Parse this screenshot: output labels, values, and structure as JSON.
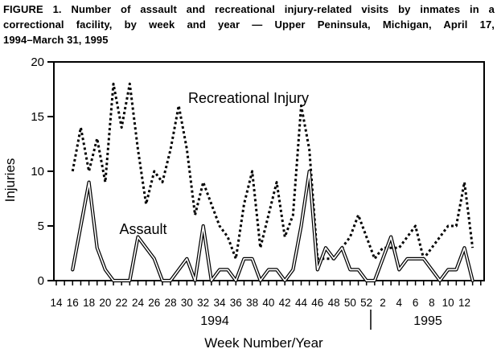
{
  "figure": {
    "title_lines": [
      "FIGURE 1. Number of assault and recreational injury-related visits by inmates in a",
      "correctional facility, by week and year — Upper Peninsula, Michigan, April 17,",
      "1994–March 31, 1995"
    ]
  },
  "chart_data": {
    "type": "line",
    "title": "",
    "xlabel": "Week Number/Year",
    "ylabel": "Injuries",
    "ylim": [
      0,
      20
    ],
    "y_ticks": [
      0,
      5,
      10,
      15,
      20
    ],
    "x_tick_labels": [
      "14",
      "16",
      "18",
      "20",
      "22",
      "24",
      "26",
      "28",
      "30",
      "32",
      "34",
      "36",
      "38",
      "40",
      "42",
      "44",
      "46",
      "48",
      "50",
      "52",
      "2",
      "4",
      "6",
      "8",
      "10",
      "12"
    ],
    "year_labels": [
      "1994",
      "1995"
    ],
    "grid": "off",
    "legend_position": "inline-annotations",
    "line_color": "#000000",
    "background_color": "#ffffff",
    "weeks": [
      16,
      17,
      18,
      19,
      20,
      21,
      22,
      23,
      24,
      25,
      26,
      27,
      28,
      29,
      30,
      31,
      32,
      33,
      34,
      35,
      36,
      37,
      38,
      39,
      40,
      41,
      42,
      43,
      44,
      45,
      46,
      47,
      48,
      49,
      50,
      51,
      52,
      1,
      2,
      3,
      4,
      5,
      6,
      7,
      8,
      9,
      10,
      11,
      12,
      13
    ],
    "series": [
      {
        "name": "Recreational Injury",
        "style": "dotted",
        "values": [
          10,
          14,
          10,
          13,
          9,
          18,
          14,
          18,
          12,
          7,
          10,
          9,
          12,
          16,
          12,
          6,
          9,
          7,
          5,
          4,
          2,
          7,
          10,
          3,
          6,
          9,
          4,
          6,
          16,
          12,
          2,
          2,
          2,
          3,
          4,
          6,
          4,
          2,
          3,
          3,
          3,
          4,
          5,
          2,
          3,
          4,
          5,
          5,
          9,
          3
        ]
      },
      {
        "name": "Assault",
        "style": "solid-outline",
        "values": [
          1,
          5,
          9,
          3,
          1,
          0,
          0,
          0,
          4,
          3,
          2,
          0,
          0,
          1,
          2,
          0,
          5,
          0,
          1,
          1,
          0,
          2,
          2,
          0,
          1,
          1,
          0,
          1,
          5,
          10,
          1,
          3,
          2,
          3,
          1,
          1,
          0,
          0,
          2,
          4,
          1,
          2,
          2,
          2,
          1,
          0,
          1,
          1,
          3,
          0
        ]
      }
    ]
  }
}
